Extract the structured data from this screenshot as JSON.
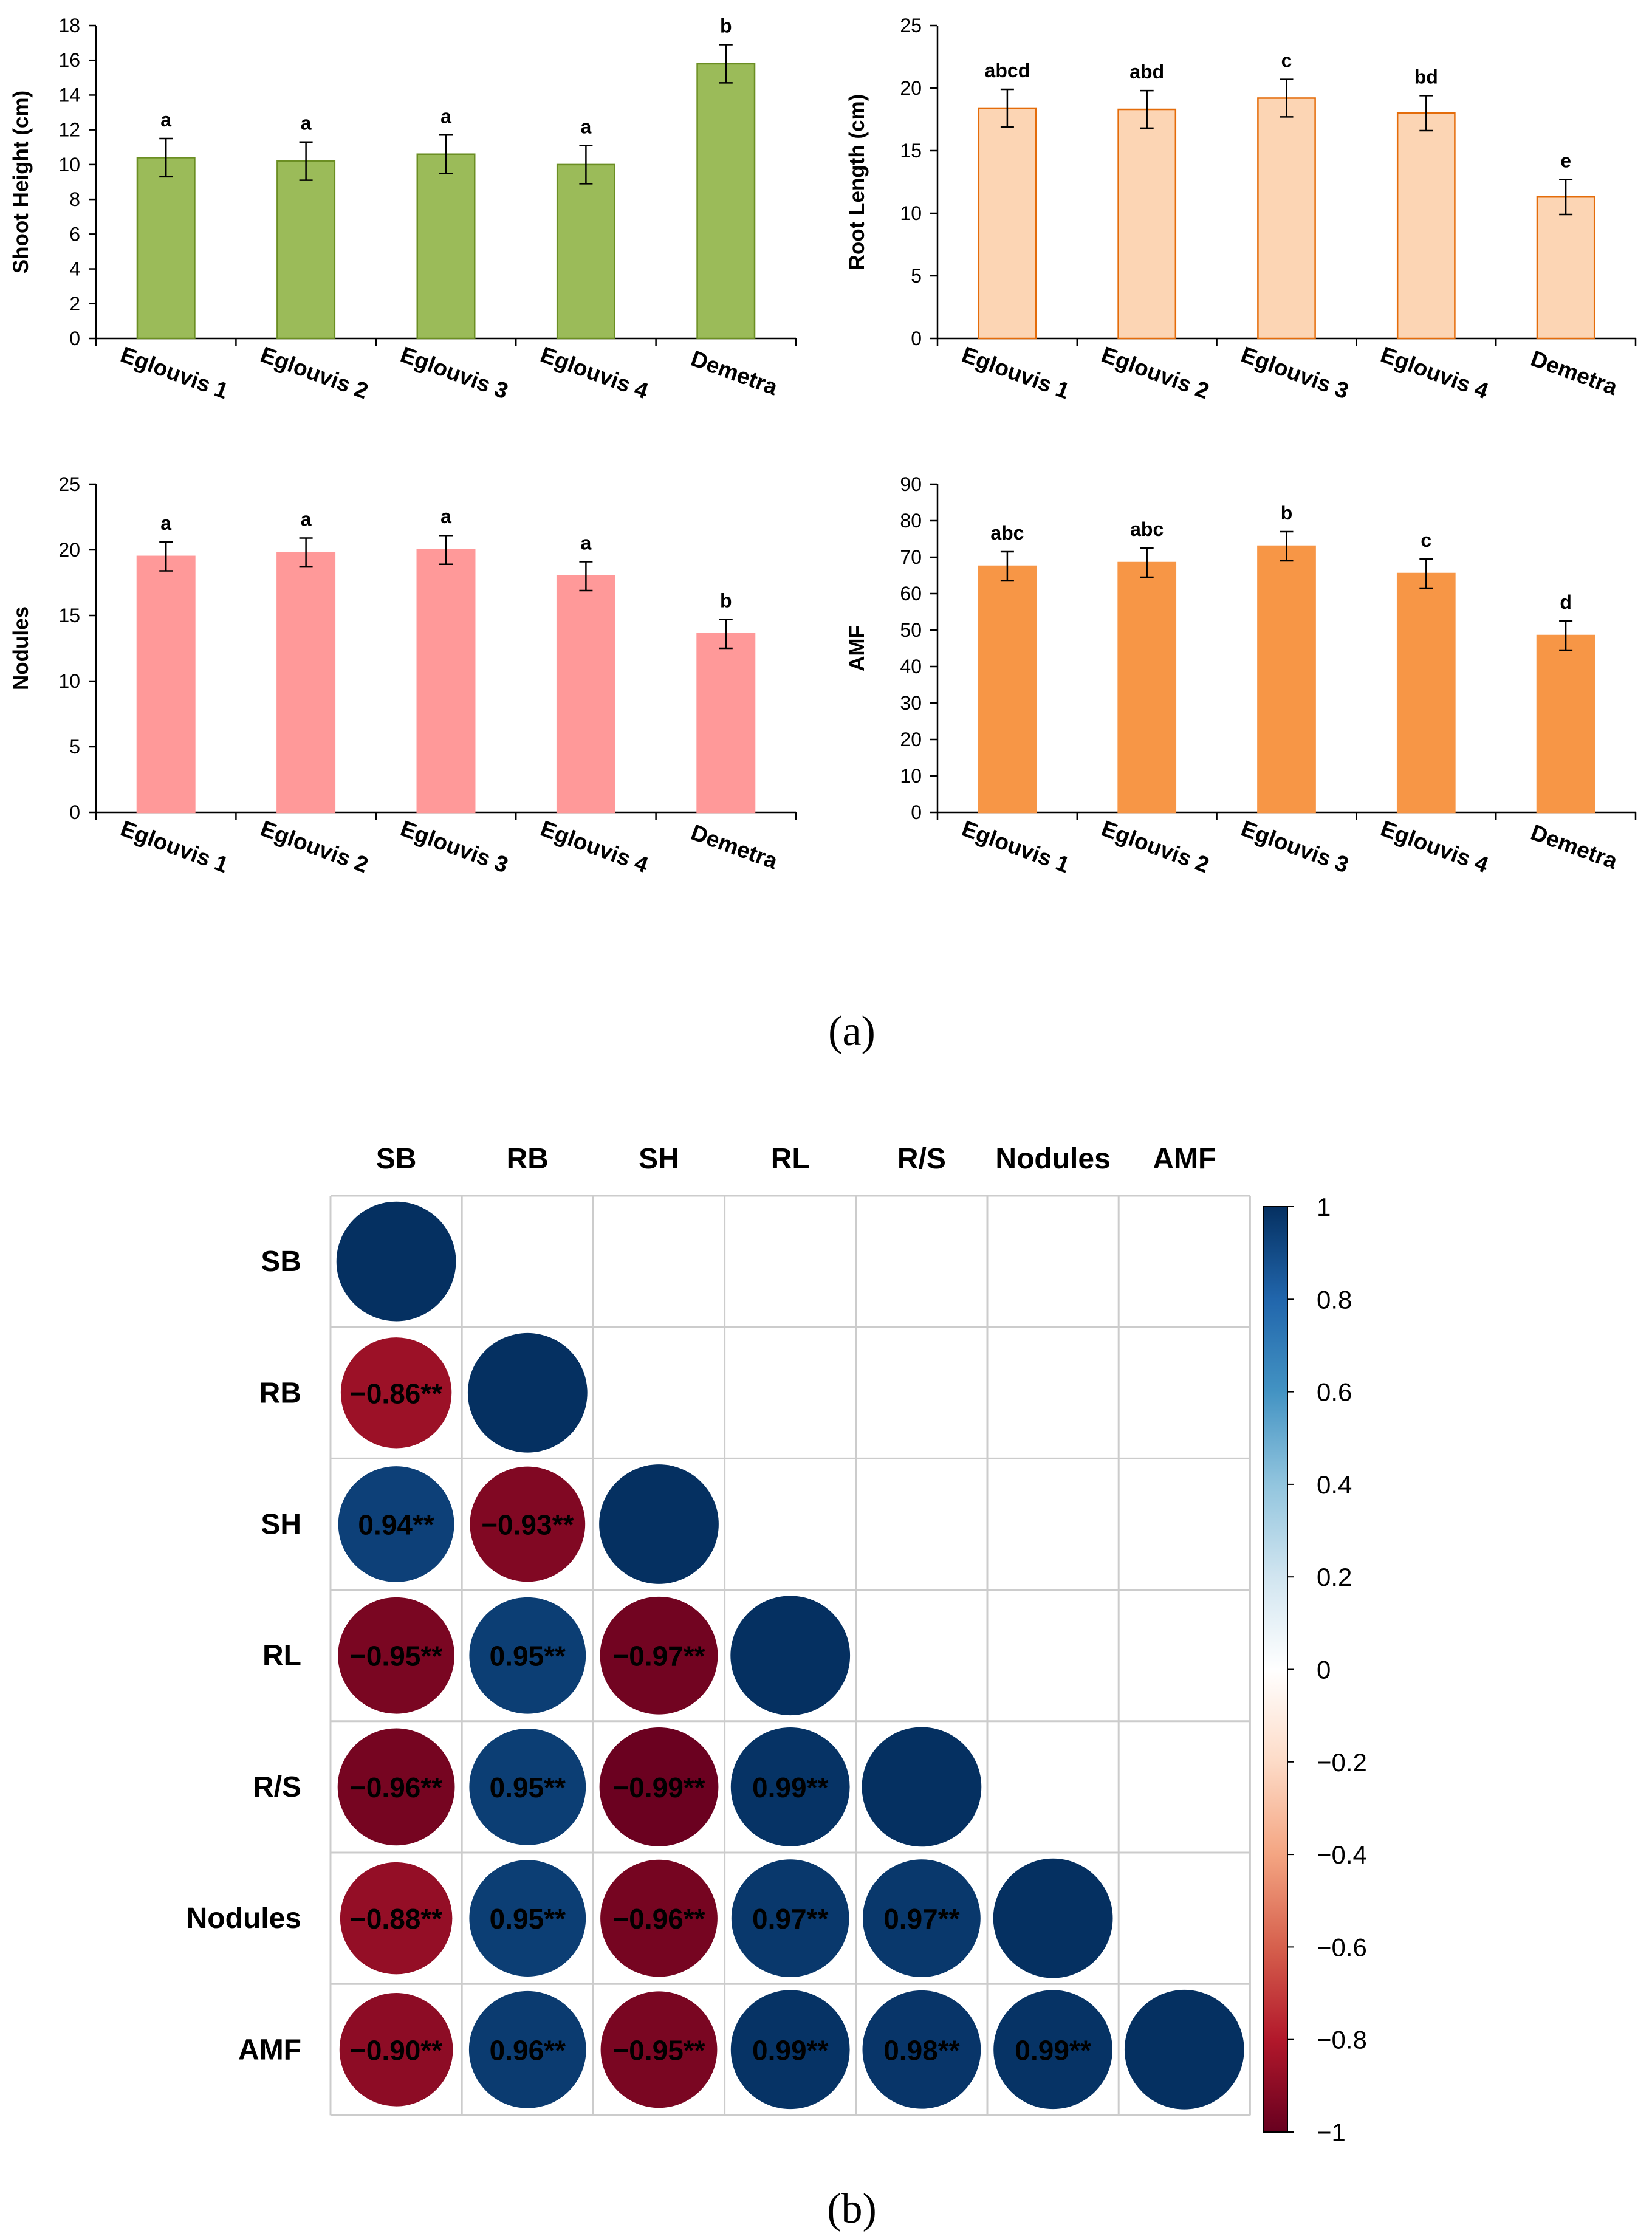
{
  "panels": {
    "a_label": "(a)",
    "b_label": "(b)"
  },
  "chart_data": [
    {
      "type": "bar",
      "id": "shoot-height",
      "ylabel": "Shoot Height (cm)",
      "categories": [
        "Eglouvis 1",
        "Eglouvis 2",
        "Eglouvis 3",
        "Eglouvis 4",
        "Demetra"
      ],
      "values": [
        10.4,
        10.2,
        10.6,
        10.0,
        15.8
      ],
      "errors": [
        1.1,
        1.1,
        1.1,
        1.1,
        1.1
      ],
      "letters": [
        "a",
        "a",
        "a",
        "a",
        "b"
      ],
      "ylim": [
        0,
        18
      ],
      "yticks": [
        0,
        2,
        4,
        6,
        8,
        10,
        12,
        14,
        16,
        18
      ],
      "color": "#9bbb59",
      "edge": "#6b8e23"
    },
    {
      "type": "bar",
      "id": "root-length",
      "ylabel": "Root Length (cm)",
      "categories": [
        "Eglouvis 1",
        "Eglouvis 2",
        "Eglouvis 3",
        "Eglouvis 4",
        "Demetra"
      ],
      "values": [
        18.4,
        18.3,
        19.2,
        18.0,
        11.3
      ],
      "errors": [
        1.5,
        1.5,
        1.5,
        1.4,
        1.4
      ],
      "letters": [
        "abcd",
        "abd",
        "c",
        "bd",
        "e"
      ],
      "ylim": [
        0,
        25
      ],
      "yticks": [
        0,
        5,
        10,
        15,
        20,
        25
      ],
      "color": "#fcd5b4",
      "edge": "#e46c0a"
    },
    {
      "type": "bar",
      "id": "nodules",
      "ylabel": "Nodules",
      "categories": [
        "Eglouvis 1",
        "Eglouvis 2",
        "Eglouvis 3",
        "Eglouvis 4",
        "Demetra"
      ],
      "values": [
        19.5,
        19.8,
        20.0,
        18.0,
        13.6
      ],
      "errors": [
        1.1,
        1.1,
        1.1,
        1.1,
        1.1
      ],
      "letters": [
        "a",
        "a",
        "a",
        "a",
        "b"
      ],
      "ylim": [
        0,
        25
      ],
      "yticks": [
        0,
        5,
        10,
        15,
        20,
        25
      ],
      "color": "#ff9999",
      "edge": "#ff9999"
    },
    {
      "type": "bar",
      "id": "amf",
      "ylabel": "AMF",
      "categories": [
        "Eglouvis 1",
        "Eglouvis 2",
        "Eglouvis 3",
        "Eglouvis 4",
        "Demetra"
      ],
      "values": [
        67.5,
        68.5,
        73.0,
        65.5,
        48.5
      ],
      "errors": [
        4.0,
        4.0,
        4.0,
        4.0,
        4.0
      ],
      "letters": [
        "abc",
        "abc",
        "b",
        "c",
        "d"
      ],
      "ylim": [
        0,
        90
      ],
      "yticks": [
        0,
        10,
        20,
        30,
        40,
        50,
        60,
        70,
        80,
        90
      ],
      "color": "#f79646",
      "edge": "#f79646"
    },
    {
      "type": "heatmap",
      "id": "correlation",
      "variables": [
        "SB",
        "RB",
        "SH",
        "RL",
        "R/S",
        "Nodules",
        "AMF"
      ],
      "matrix": [
        [
          1,
          null,
          null,
          null,
          null,
          null,
          null
        ],
        [
          -0.86,
          1,
          null,
          null,
          null,
          null,
          null
        ],
        [
          0.94,
          -0.93,
          1,
          null,
          null,
          null,
          null
        ],
        [
          -0.95,
          0.95,
          -0.97,
          1,
          null,
          null,
          null
        ],
        [
          -0.96,
          0.95,
          -0.99,
          0.99,
          1,
          null,
          null
        ],
        [
          -0.88,
          0.95,
          -0.96,
          0.97,
          0.97,
          1,
          null
        ],
        [
          -0.9,
          0.96,
          -0.95,
          0.99,
          0.98,
          0.99,
          1
        ]
      ],
      "labels": [
        [
          null,
          null,
          null,
          null,
          null,
          null,
          null
        ],
        [
          "−0.86**",
          null,
          null,
          null,
          null,
          null,
          null
        ],
        [
          "0.94**",
          "−0.93**",
          null,
          null,
          null,
          null,
          null
        ],
        [
          "−0.95**",
          "0.95**",
          "−0.97**",
          null,
          null,
          null,
          null
        ],
        [
          "−0.96**",
          "0.95**",
          "−0.99**",
          "0.99**",
          null,
          null,
          null
        ],
        [
          "−0.88**",
          "0.95**",
          "−0.96**",
          "0.97**",
          "0.97**",
          null,
          null
        ],
        [
          "−0.90**",
          "0.96**",
          "−0.95**",
          "0.99**",
          "0.98**",
          "0.99**",
          null
        ]
      ],
      "colorbar_ticks": [
        "1",
        "0.8",
        "0.6",
        "0.4",
        "0.2",
        "0",
        "−0.2",
        "−0.4",
        "−0.6",
        "−0.8",
        "−1"
      ],
      "colorbar_values": [
        1,
        0.8,
        0.6,
        0.4,
        0.2,
        0,
        -0.2,
        -0.4,
        -0.6,
        -0.8,
        -1
      ],
      "colors": {
        "neg": "#67001f",
        "mid": "#ffffff",
        "pos": "#053061"
      }
    }
  ]
}
